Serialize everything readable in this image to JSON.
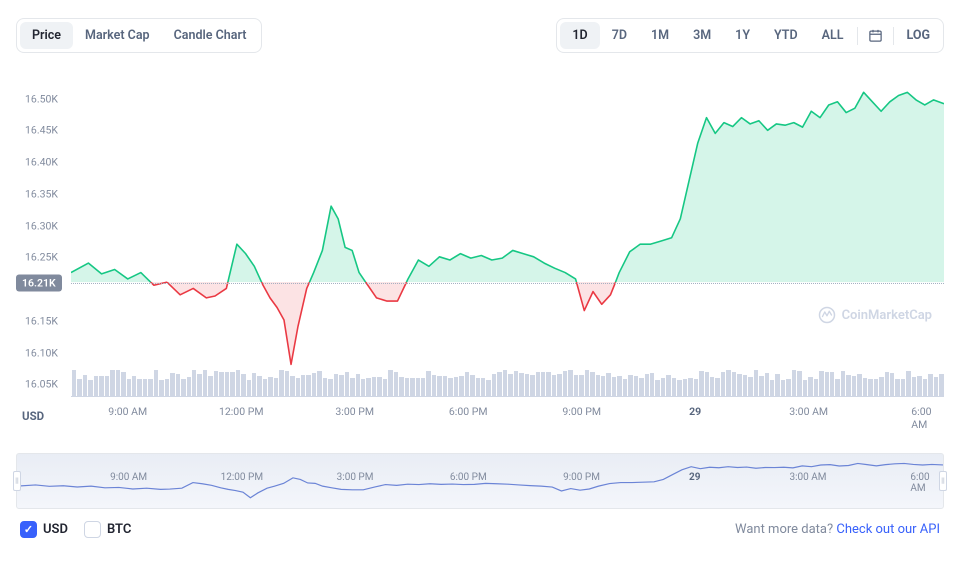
{
  "toolbar": {
    "view_tabs": [
      "Price",
      "Market Cap",
      "Candle Chart"
    ],
    "active_view": 0,
    "range_tabs": [
      "1D",
      "7D",
      "1M",
      "3M",
      "1Y",
      "YTD",
      "ALL"
    ],
    "active_range": 0,
    "log_label": "LOG"
  },
  "chart": {
    "type": "line-area",
    "y_ticks": [
      16.05,
      16.1,
      16.15,
      16.21,
      16.25,
      16.3,
      16.35,
      16.4,
      16.45,
      16.5
    ],
    "y_labels": [
      "16.05K",
      "16.10K",
      "16.15K",
      "16.21K",
      "16.25K",
      "16.30K",
      "16.35K",
      "16.40K",
      "16.45K",
      "16.50K"
    ],
    "y_min": 16.03,
    "y_max": 16.55,
    "baseline": 16.21,
    "baseline_label": "16.21K",
    "x_labels": [
      {
        "t": 0.065,
        "label": "9:00 AM"
      },
      {
        "t": 0.195,
        "label": "12:00 PM"
      },
      {
        "t": 0.325,
        "label": "3:00 PM"
      },
      {
        "t": 0.455,
        "label": "6:00 PM"
      },
      {
        "t": 0.585,
        "label": "9:00 PM"
      },
      {
        "t": 0.715,
        "label": "29",
        "bold": true
      },
      {
        "t": 0.845,
        "label": "3:00 AM"
      },
      {
        "t": 0.975,
        "label": "6:00 AM"
      }
    ],
    "usd_axis_label": "USD",
    "colors": {
      "up": "#16c784",
      "down": "#ea3943",
      "up_fill": "rgba(22,199,132,0.18)",
      "down_fill": "rgba(234,57,67,0.14)",
      "grid": "#cfd6e4",
      "baseline": "#a6b0c3",
      "vol": "#cfd6e4",
      "brush_line": "#6b84d6"
    },
    "points": [
      [
        0.0,
        16.225
      ],
      [
        0.02,
        16.24
      ],
      [
        0.035,
        16.223
      ],
      [
        0.05,
        16.23
      ],
      [
        0.065,
        16.215
      ],
      [
        0.08,
        16.225
      ],
      [
        0.095,
        16.205
      ],
      [
        0.11,
        16.21
      ],
      [
        0.125,
        16.19
      ],
      [
        0.14,
        16.2
      ],
      [
        0.155,
        16.185
      ],
      [
        0.165,
        16.188
      ],
      [
        0.178,
        16.2
      ],
      [
        0.19,
        16.27
      ],
      [
        0.2,
        16.255
      ],
      [
        0.21,
        16.235
      ],
      [
        0.22,
        16.205
      ],
      [
        0.228,
        16.185
      ],
      [
        0.236,
        16.17
      ],
      [
        0.244,
        16.15
      ],
      [
        0.252,
        16.08
      ],
      [
        0.26,
        16.14
      ],
      [
        0.27,
        16.2
      ],
      [
        0.278,
        16.225
      ],
      [
        0.288,
        16.26
      ],
      [
        0.298,
        16.33
      ],
      [
        0.306,
        16.31
      ],
      [
        0.314,
        16.265
      ],
      [
        0.322,
        16.26
      ],
      [
        0.33,
        16.225
      ],
      [
        0.34,
        16.205
      ],
      [
        0.35,
        16.185
      ],
      [
        0.362,
        16.18
      ],
      [
        0.374,
        16.18
      ],
      [
        0.386,
        16.215
      ],
      [
        0.398,
        16.245
      ],
      [
        0.41,
        16.235
      ],
      [
        0.422,
        16.25
      ],
      [
        0.434,
        16.245
      ],
      [
        0.446,
        16.255
      ],
      [
        0.458,
        16.248
      ],
      [
        0.47,
        16.252
      ],
      [
        0.482,
        16.245
      ],
      [
        0.494,
        16.248
      ],
      [
        0.506,
        16.26
      ],
      [
        0.518,
        16.255
      ],
      [
        0.53,
        16.25
      ],
      [
        0.542,
        16.24
      ],
      [
        0.554,
        16.232
      ],
      [
        0.566,
        16.225
      ],
      [
        0.578,
        16.215
      ],
      [
        0.588,
        16.165
      ],
      [
        0.598,
        16.195
      ],
      [
        0.608,
        16.175
      ],
      [
        0.618,
        16.19
      ],
      [
        0.628,
        16.225
      ],
      [
        0.64,
        16.258
      ],
      [
        0.652,
        16.27
      ],
      [
        0.664,
        16.27
      ],
      [
        0.676,
        16.275
      ],
      [
        0.688,
        16.28
      ],
      [
        0.698,
        16.31
      ],
      [
        0.708,
        16.37
      ],
      [
        0.718,
        16.43
      ],
      [
        0.728,
        16.47
      ],
      [
        0.738,
        16.445
      ],
      [
        0.748,
        16.462
      ],
      [
        0.758,
        16.456
      ],
      [
        0.768,
        16.47
      ],
      [
        0.778,
        16.46
      ],
      [
        0.788,
        16.465
      ],
      [
        0.798,
        16.45
      ],
      [
        0.808,
        16.46
      ],
      [
        0.818,
        16.458
      ],
      [
        0.828,
        16.462
      ],
      [
        0.838,
        16.455
      ],
      [
        0.848,
        16.48
      ],
      [
        0.858,
        16.47
      ],
      [
        0.868,
        16.49
      ],
      [
        0.878,
        16.495
      ],
      [
        0.888,
        16.478
      ],
      [
        0.898,
        16.485
      ],
      [
        0.908,
        16.51
      ],
      [
        0.918,
        16.495
      ],
      [
        0.928,
        16.48
      ],
      [
        0.938,
        16.495
      ],
      [
        0.948,
        16.505
      ],
      [
        0.958,
        16.51
      ],
      [
        0.968,
        16.498
      ],
      [
        0.978,
        16.49
      ],
      [
        0.988,
        16.498
      ],
      [
        1.0,
        16.492
      ]
    ],
    "watermark": "CoinMarketCap",
    "vol_bar_count": 160
  },
  "footer": {
    "currencies": [
      {
        "label": "USD",
        "checked": true
      },
      {
        "label": "BTC",
        "checked": false
      }
    ],
    "more_text": "Want more data? ",
    "more_link": "Check out our API"
  }
}
